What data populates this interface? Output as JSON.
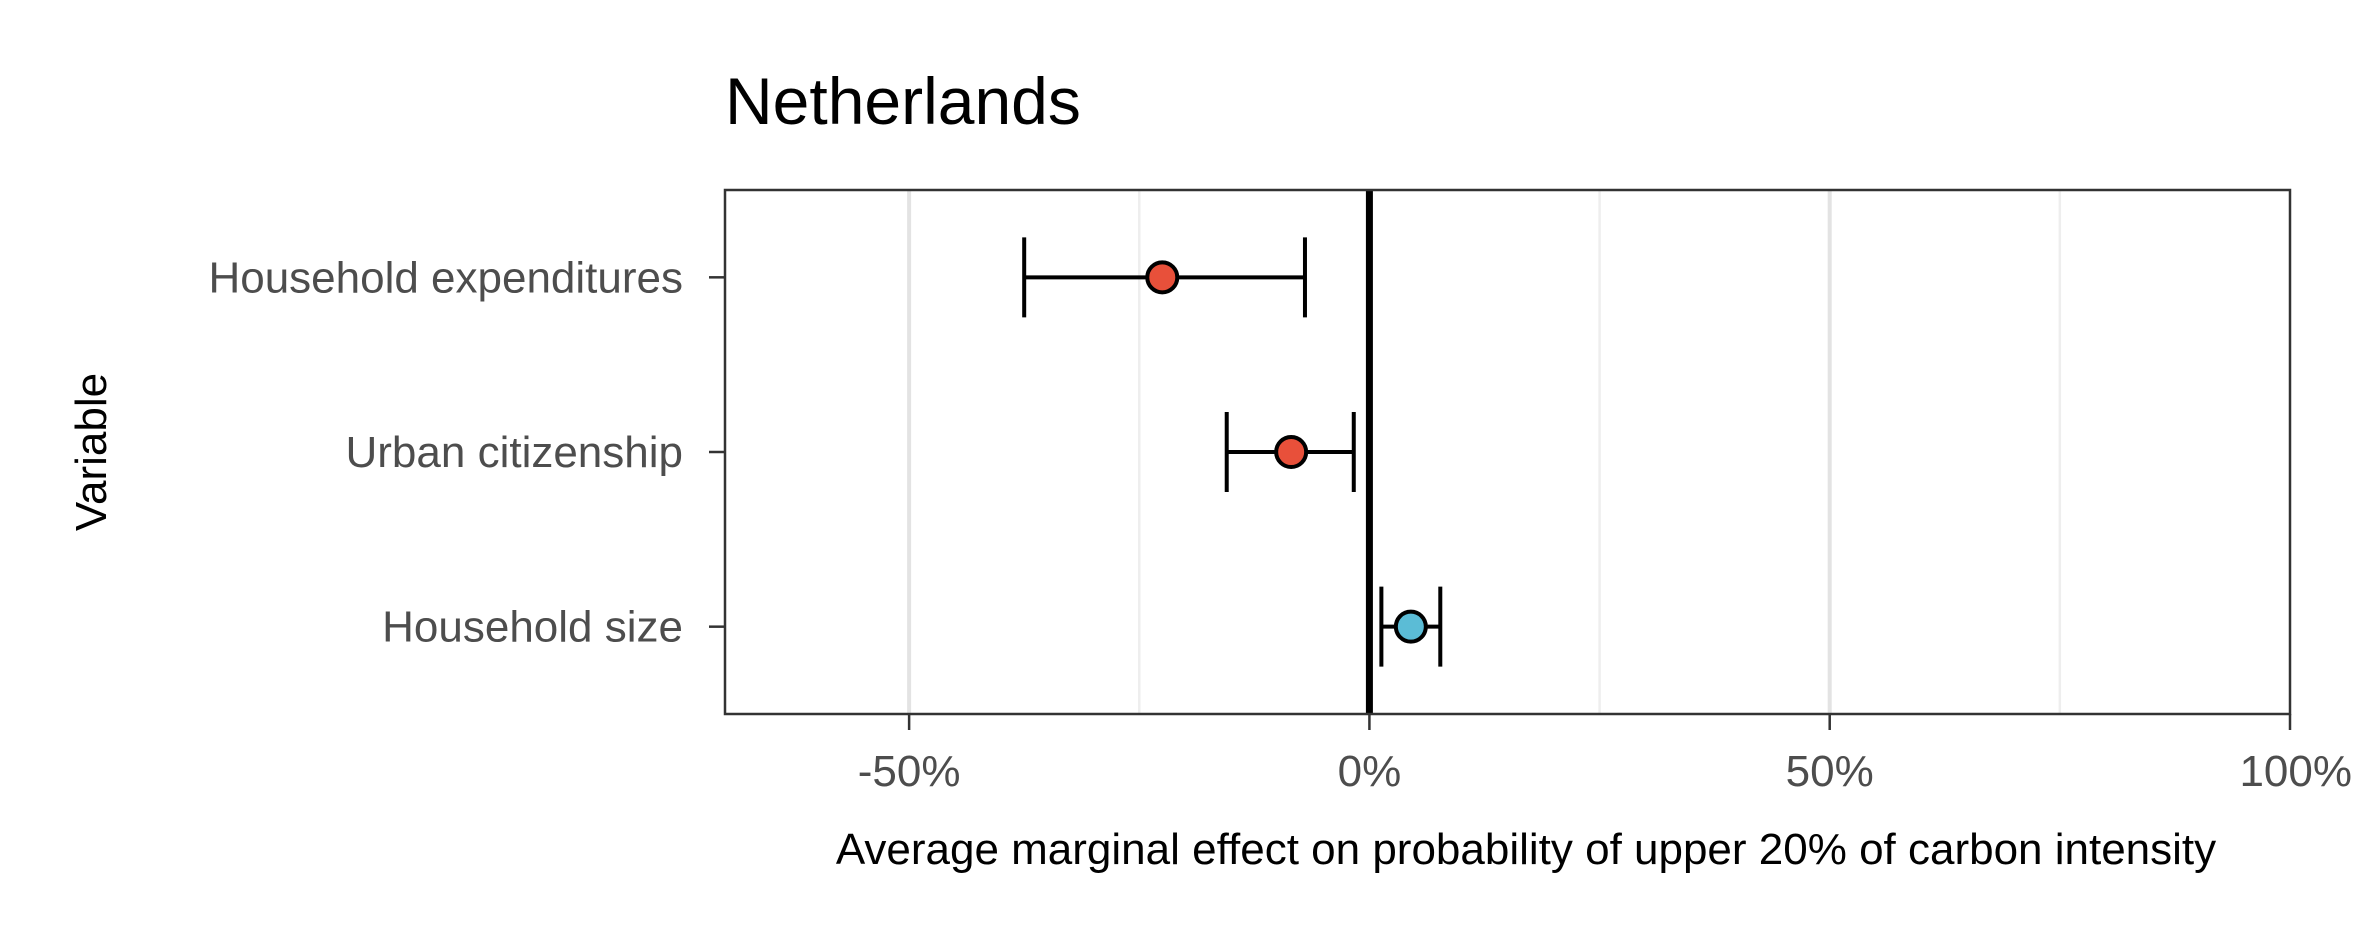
{
  "chart_data": {
    "type": "scatter",
    "subtype": "coefficient-plot-with-error-bars",
    "title": "Netherlands",
    "xlabel": "Average marginal effect on probability of upper 20% of carbon intensity",
    "ylabel": "Variable",
    "xlim": [
      -0.7,
      1.0
    ],
    "x_ticks": [
      {
        "value": -0.5,
        "label": "-50%"
      },
      {
        "value": 0.0,
        "label": "0%"
      },
      {
        "value": 0.5,
        "label": "50%"
      },
      {
        "value": 1.0,
        "label": "100%"
      }
    ],
    "minor_gridlines": [
      -0.25,
      0.25,
      0.75
    ],
    "zero_line": 0.0,
    "grid": true,
    "legend": "none",
    "categories": [
      "Household expenditures",
      "Urban citizenship",
      "Household size"
    ],
    "points": [
      {
        "variable": "Household expenditures",
        "estimate": -0.225,
        "lower": -0.375,
        "upper": -0.07,
        "color": "#e8503a"
      },
      {
        "variable": "Urban citizenship",
        "estimate": -0.085,
        "lower": -0.155,
        "upper": -0.017,
        "color": "#e8503a"
      },
      {
        "variable": "Household size",
        "estimate": 0.045,
        "lower": 0.013,
        "upper": 0.077,
        "color": "#5bbcd6"
      }
    ]
  }
}
